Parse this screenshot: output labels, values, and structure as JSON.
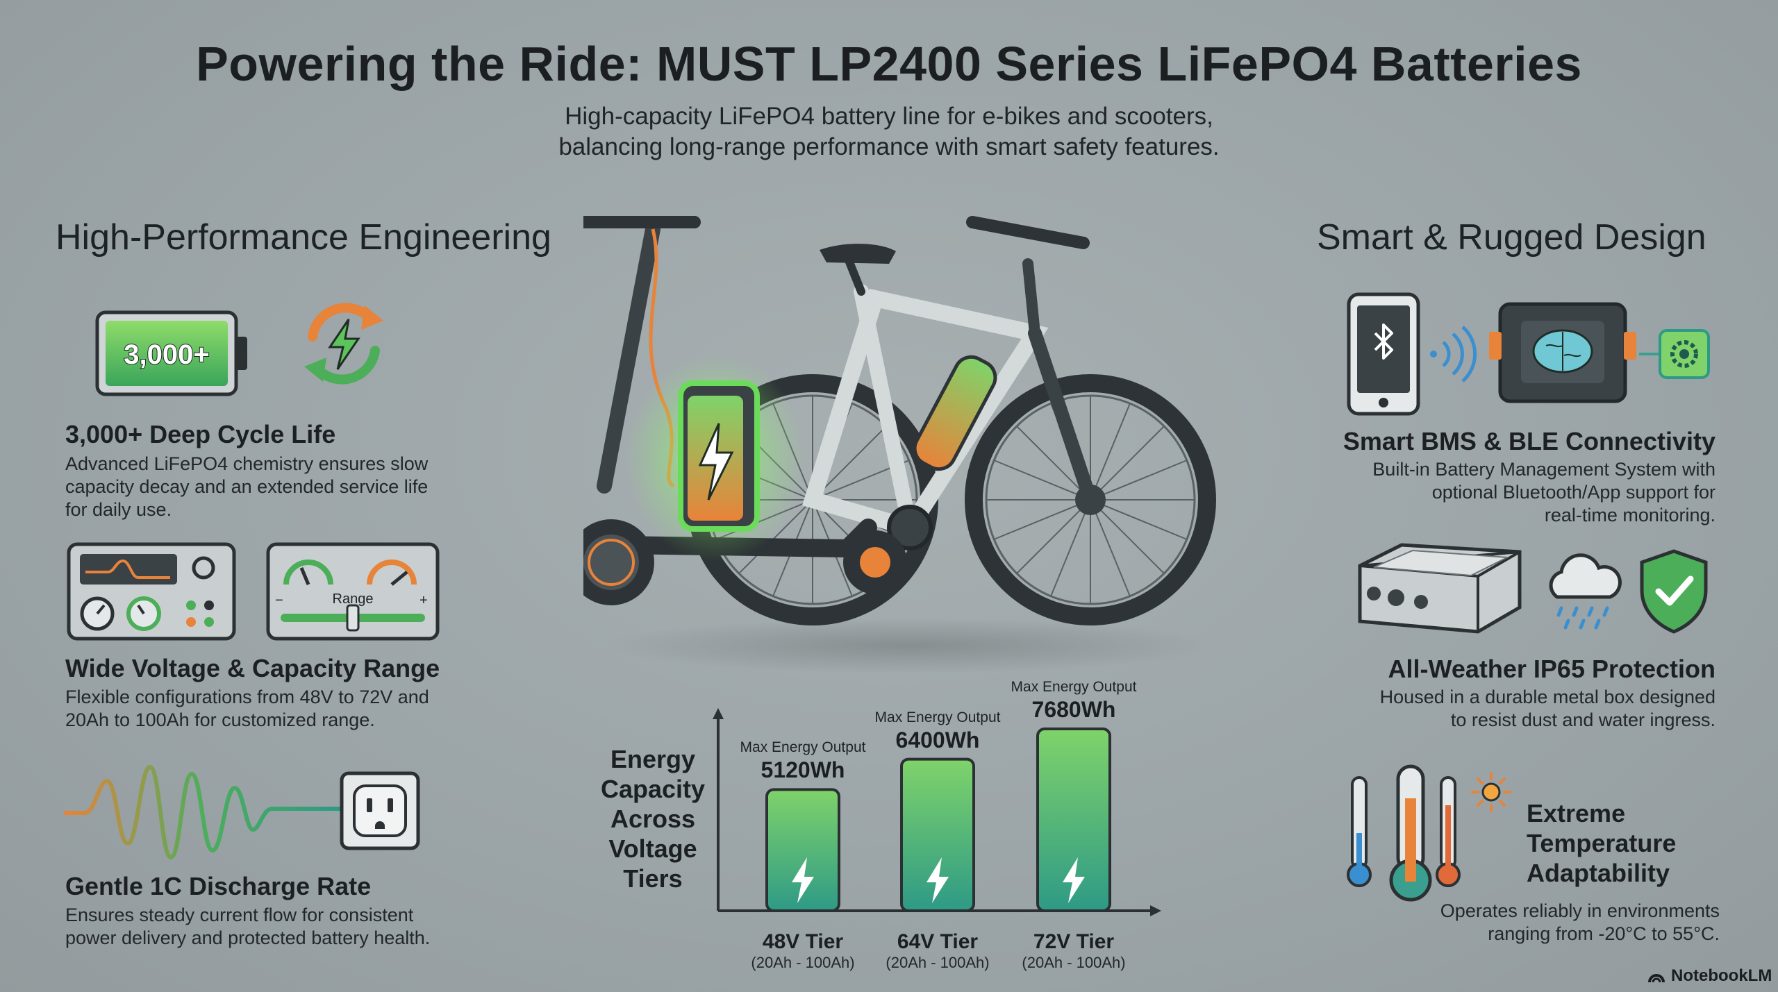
{
  "header": {
    "title": "Powering the Ride: MUST LP2400 Series LiFePO4 Batteries",
    "subtitle_line1": "High-capacity LiFePO4 battery line for e-bikes and scooters,",
    "subtitle_line2": "balancing long-range performance with smart safety features."
  },
  "left_section": {
    "heading": "High-Performance Engineering",
    "features": [
      {
        "badge": "3,000+",
        "title": "3,000+ Deep Cycle Life",
        "lines": [
          "Advanced LiFePO4 chemistry ensures slow",
          "capacity decay and an extended service life",
          "for daily use."
        ],
        "icons": [
          "battery-icon",
          "recycle-bolt-icon"
        ]
      },
      {
        "gauge_label": "Range",
        "minus": "−",
        "plus": "+",
        "title": "Wide Voltage & Capacity Range",
        "lines": [
          "Flexible configurations from 48V to 72V and",
          "20Ah to 100Ah for customized range."
        ],
        "icons": [
          "control-panel-icon",
          "range-gauge-icon"
        ]
      },
      {
        "title": "Gentle 1C Discharge Rate",
        "lines": [
          "Ensures steady current flow for consistent",
          "power delivery and protected battery health."
        ],
        "icons": [
          "waveform-icon",
          "power-outlet-icon"
        ]
      }
    ]
  },
  "right_section": {
    "heading": "Smart & Rugged Design",
    "features": [
      {
        "title": "Smart BMS & BLE Connectivity",
        "lines": [
          "Built-in Battery Management System with",
          "optional Bluetooth/App support for",
          "real-time monitoring."
        ],
        "icons": [
          "phone-bluetooth-icon",
          "bms-chip-icon",
          "gear-icon"
        ]
      },
      {
        "title": "All-Weather IP65 Protection",
        "lines": [
          "Housed in a durable metal box designed",
          "to resist dust and water ingress."
        ],
        "icons": [
          "metal-box-icon",
          "rain-cloud-icon",
          "shield-check-icon"
        ]
      },
      {
        "title_lines": [
          "Extreme",
          "Temperature",
          "Adaptability"
        ],
        "lines": [
          "Operates reliably in environments",
          "ranging from -20°C to 55°C."
        ],
        "icons": [
          "thermometer-icon",
          "sun-icon"
        ]
      }
    ]
  },
  "chart_data": {
    "type": "bar",
    "label_lines": [
      "Energy",
      "Capacity",
      "Across",
      "Voltage",
      "Tiers"
    ],
    "categories": [
      "48V Tier",
      "64V Tier",
      "72V Tier"
    ],
    "sublabels": [
      "(20Ah - 100Ah)",
      "(20Ah - 100Ah)",
      "(20Ah - 100Ah)"
    ],
    "bar_caption": "Max Energy Output",
    "values": [
      5120,
      6400,
      7680
    ],
    "value_labels": [
      "5120Wh",
      "6400Wh",
      "7680Wh"
    ],
    "ylim": [
      0,
      8500
    ],
    "colors": {
      "top": "#7fd36a",
      "bottom": "#2e9a86"
    }
  },
  "footer": {
    "brand": "NotebookLM"
  },
  "colors": {
    "background": "#9ea6a9",
    "accent_green": "#5cc45a",
    "accent_orange": "#e8833a",
    "accent_teal": "#3a9f8e"
  }
}
